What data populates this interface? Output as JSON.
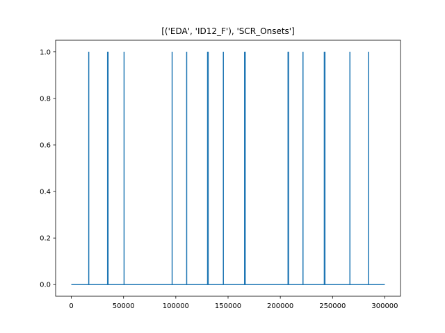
{
  "chart_data": {
    "type": "line",
    "title": "[('EDA', 'ID12_F'), 'SCR_Onsets']",
    "xlabel": "",
    "ylabel": "",
    "xlim": [
      -15000,
      315000
    ],
    "ylim": [
      -0.05,
      1.05
    ],
    "x_ticks": [
      0,
      50000,
      100000,
      150000,
      200000,
      250000,
      300000
    ],
    "y_ticks": [
      0.0,
      0.2,
      0.4,
      0.6,
      0.8,
      1.0
    ],
    "x_tick_labels": [
      "0",
      "50000",
      "100000",
      "150000",
      "200000",
      "250000",
      "300000"
    ],
    "y_tick_labels": [
      "0.0",
      "0.2",
      "0.4",
      "0.6",
      "0.8",
      "1.0"
    ],
    "grid": false,
    "series_color": "#1f77b4",
    "baseline": {
      "x_start": 0,
      "x_end": 300000,
      "y": 0
    },
    "onsets_x": [
      16700,
      34700,
      35200,
      50500,
      96500,
      110400,
      130400,
      131000,
      145500,
      165800,
      166400,
      207400,
      207900,
      221700,
      242100,
      242700,
      266600,
      284300
    ]
  }
}
